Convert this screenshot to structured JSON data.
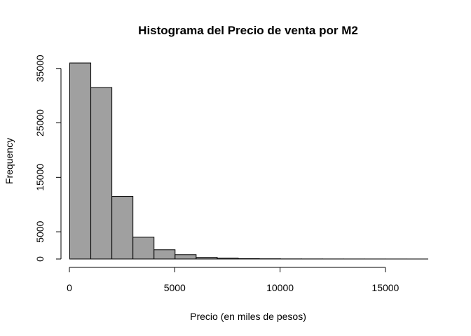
{
  "chart_data": {
    "type": "bar",
    "title": "Histograma del Precio de venta por M2",
    "xlabel": "Precio (en miles de pesos)",
    "ylabel": "Frequency",
    "bin_edges": [
      0,
      1000,
      2000,
      3000,
      4000,
      5000,
      6000,
      7000,
      8000,
      9000,
      10000,
      11000,
      12000,
      13000,
      14000,
      15000,
      16000,
      17000
    ],
    "values": [
      36000,
      31500,
      11500,
      4000,
      1700,
      800,
      300,
      150,
      60,
      40,
      20,
      15,
      10,
      8,
      6,
      4,
      2
    ],
    "xlim": [
      0,
      17000
    ],
    "ylim": [
      0,
      36000
    ],
    "x_ticks": [
      0,
      5000,
      10000,
      15000
    ],
    "y_ticks": [
      0,
      5000,
      15000,
      25000,
      35000
    ],
    "grid": false,
    "bar_color": "#a0a0a0",
    "edge_color": "#000000"
  }
}
